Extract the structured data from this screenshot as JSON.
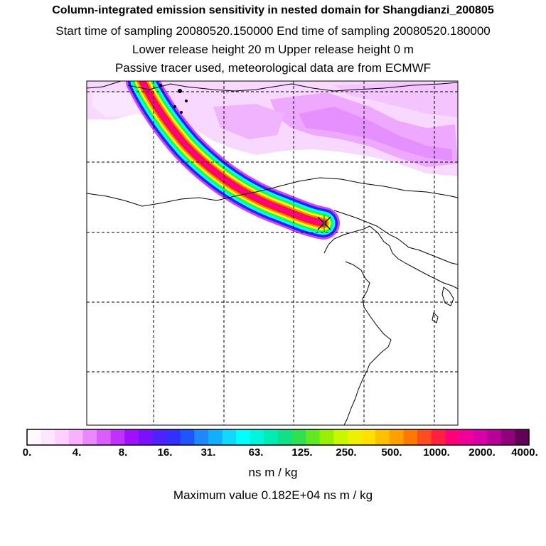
{
  "header": {
    "title": "Column-integrated emission sensitivity in nested domain for Shangdianzi_200805",
    "sampling_line": "Start time of sampling 20080520.150000     End time of sampling 20080520.180000",
    "release_line": "Lower release height   20 m          Upper release height    0 m",
    "tracer_line": "Passive tracer used, meteorological data are from ECMWF"
  },
  "chart_data": {
    "type": "heatmap",
    "title": "Column-integrated emission sensitivity in nested domain for Shangdianzi_200805",
    "colorbar": {
      "tick_labels": [
        "0.",
        "4.",
        "8.",
        "16.",
        "31.",
        "63.",
        "125.",
        "250.",
        "500.",
        "1000.",
        "2000.",
        "4000."
      ],
      "units": "ns m / kg",
      "colors": [
        "#fff8ff",
        "#ffe8ff",
        "#ffd0ff",
        "#f8b0ff",
        "#ea88ff",
        "#dc5cff",
        "#c030ff",
        "#a010ff",
        "#7a10ff",
        "#5020ff",
        "#3030ff",
        "#1f55ff",
        "#1f88ff",
        "#10b0ff",
        "#10d8ff",
        "#00ffff",
        "#00f5dd",
        "#00ecb5",
        "#10e088",
        "#30e050",
        "#60e820",
        "#98f000",
        "#c8f800",
        "#eef000",
        "#ffe000",
        "#ffc000",
        "#ffa000",
        "#ff7800",
        "#ff4c20",
        "#ff2040",
        "#ff0078",
        "#f0009a",
        "#d800a8",
        "#b80098",
        "#90007a",
        "#620058"
      ],
      "plume_colors": [
        "#cc44ff",
        "#2020ff",
        "#00ffff",
        "#00ff60",
        "#ffff00",
        "#ff8800",
        "#ff1030",
        "#ff0090"
      ]
    },
    "maximum_text": "Maximum value  0.182E+04 ns m / kg",
    "receptor": {
      "name": "Shangdianzi",
      "marker": "x"
    },
    "grid": true
  }
}
